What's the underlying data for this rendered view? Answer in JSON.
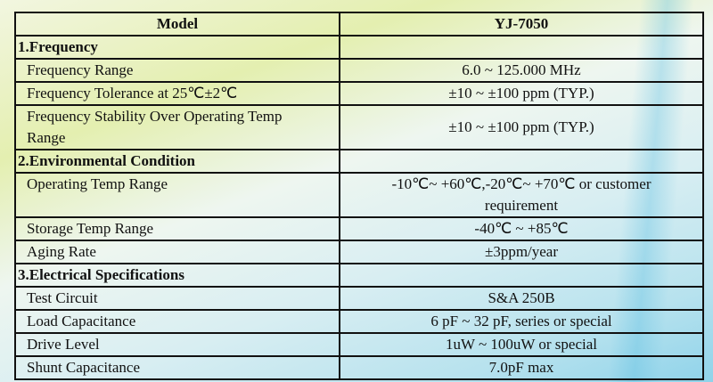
{
  "header": {
    "col1": "Model",
    "col2": "YJ-7050"
  },
  "sections": [
    {
      "title": "1.Frequency",
      "rows": [
        {
          "label": "Frequency Range",
          "value": "6.0 ~ 125.000 MHz"
        },
        {
          "label": "Frequency Tolerance at 25℃±2℃",
          "value": "±10 ~  ±100 ppm (TYP.)"
        },
        {
          "label": "Frequency Stability Over Operating Temp Range",
          "value": "±10 ~  ±100 ppm (TYP.)"
        }
      ]
    },
    {
      "title": "2.Environmental Condition",
      "rows": [
        {
          "label": "Operating Temp Range",
          "value": "-10℃~ +60℃,-20℃~ +70℃ or customer requirement"
        },
        {
          "label": "Storage Temp Range",
          "value": "-40℃ ~ +85℃"
        },
        {
          "label": "Aging Rate",
          "value": "±3ppm/year"
        }
      ]
    },
    {
      "title": "3.Electrical Specifications",
      "rows": [
        {
          "label": "Test Circuit",
          "value": "S&A 250B"
        },
        {
          "label": "Load Capacitance",
          "value": "6 pF ~ 32 pF, series or special"
        },
        {
          "label": "Drive Level",
          "value": "1uW ~ 100uW or special"
        },
        {
          "label": "Shunt Capacitance",
          "value": "7.0pF max"
        }
      ]
    }
  ]
}
